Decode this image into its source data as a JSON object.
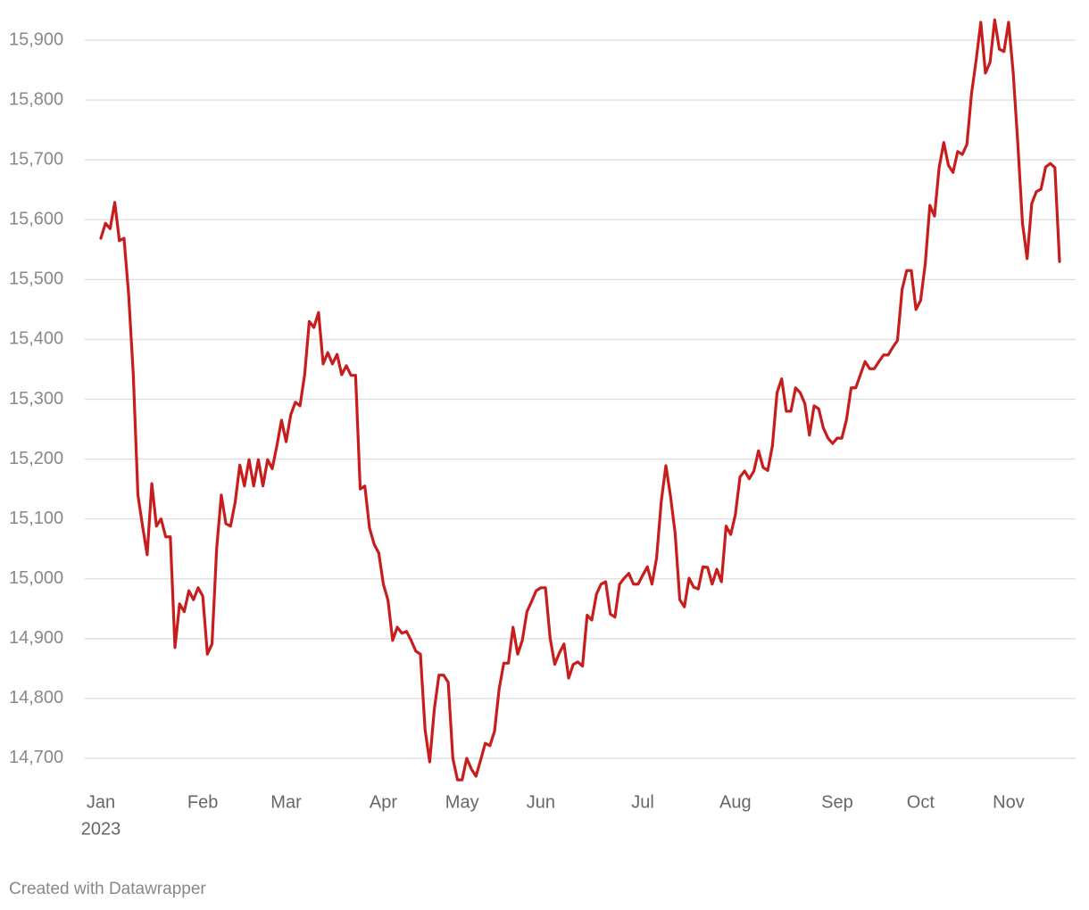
{
  "chart_data": {
    "type": "line",
    "color": "#c71e1d",
    "grid": true,
    "year_label": "2023",
    "footer": "Created with Datawrapper",
    "categories": [
      "Jan",
      null,
      null,
      null,
      null,
      null,
      null,
      null,
      null,
      null,
      null,
      null,
      null,
      null,
      null,
      null,
      null,
      null,
      null,
      null,
      null,
      null,
      "Feb",
      null,
      null,
      null,
      null,
      null,
      null,
      null,
      null,
      null,
      null,
      null,
      null,
      null,
      null,
      null,
      null,
      null,
      "Mar",
      null,
      null,
      null,
      null,
      null,
      null,
      null,
      null,
      null,
      null,
      null,
      null,
      null,
      null,
      null,
      null,
      null,
      null,
      null,
      null,
      "Apr",
      null,
      null,
      null,
      null,
      null,
      null,
      null,
      null,
      null,
      null,
      null,
      null,
      null,
      null,
      null,
      null,
      "May",
      null,
      null,
      null,
      null,
      null,
      null,
      null,
      null,
      null,
      null,
      null,
      null,
      null,
      null,
      null,
      null,
      "Jun",
      null,
      null,
      null,
      null,
      null,
      null,
      null,
      null,
      null,
      null,
      null,
      null,
      null,
      null,
      null,
      null,
      null,
      null,
      null,
      null,
      null,
      "Jul",
      null,
      null,
      null,
      null,
      null,
      null,
      null,
      null,
      null,
      null,
      null,
      null,
      null,
      null,
      null,
      null,
      null,
      null,
      null,
      "Aug",
      null,
      null,
      null,
      null,
      null,
      null,
      null,
      null,
      null,
      null,
      null,
      null,
      null,
      null,
      null,
      null,
      null,
      null,
      null,
      null,
      null,
      "Sep",
      null,
      null,
      null,
      null,
      null,
      null,
      null,
      null,
      null,
      null,
      null,
      null,
      null,
      null,
      null,
      null,
      null,
      "Oct",
      null,
      null,
      null,
      null,
      null,
      null,
      null,
      null,
      null,
      null,
      null,
      null,
      null,
      null,
      null,
      null,
      null,
      null,
      "Nov",
      null,
      null,
      null,
      null,
      null,
      null,
      null,
      null,
      null,
      null,
      null
    ],
    "values": [
      15569,
      15594,
      15585,
      15629,
      15565,
      15569,
      15475,
      15341,
      15140,
      15088,
      15040,
      15159,
      15088,
      15100,
      15070,
      15070,
      14885,
      14958,
      14945,
      14980,
      14965,
      14985,
      14971,
      14874,
      14891,
      15050,
      15140,
      15092,
      15088,
      15128,
      15190,
      15155,
      15199,
      15155,
      15199,
      15155,
      15199,
      15184,
      15222,
      15265,
      15229,
      15274,
      15295,
      15289,
      15341,
      15430,
      15420,
      15445,
      15359,
      15378,
      15359,
      15375,
      15341,
      15356,
      15340,
      15340,
      15150,
      15155,
      15085,
      15058,
      15043,
      14991,
      14964,
      14897,
      14919,
      14909,
      14912,
      14897,
      14879,
      14874,
      14748,
      14694,
      14782,
      14839,
      14839,
      14827,
      14700,
      14664,
      14664,
      14700,
      14682,
      14670,
      14697,
      14725,
      14721,
      14745,
      14816,
      14859,
      14859,
      14919,
      14874,
      14897,
      14945,
      14962,
      14980,
      14985,
      14985,
      14901,
      14857,
      14876,
      14891,
      14834,
      14857,
      14861,
      14854,
      14939,
      14931,
      14974,
      14991,
      14995,
      14941,
      14936,
      14991,
      15001,
      15009,
      14991,
      14991,
      15006,
      15020,
      14991,
      15035,
      15129,
      15189,
      15138,
      15076,
      14965,
      14953,
      15001,
      14986,
      14983,
      15020,
      15019,
      14991,
      15016,
      14995,
      15088,
      15074,
      15107,
      15170,
      15180,
      15167,
      15180,
      15214,
      15186,
      15181,
      15222,
      15311,
      15334,
      15280,
      15280,
      15319,
      15311,
      15293,
      15240,
      15289,
      15284,
      15252,
      15235,
      15226,
      15235,
      15235,
      15266,
      15319,
      15319,
      15341,
      15363,
      15351,
      15351,
      15363,
      15374,
      15374,
      15387,
      15398,
      15483,
      15515,
      15515,
      15450,
      15465,
      15526,
      15624,
      15606,
      15687,
      15729,
      15691,
      15679,
      15714,
      15709,
      15726,
      15811,
      15867,
      15930,
      15845,
      15863,
      15934,
      15885,
      15881,
      15930,
      15845,
      15726,
      15594,
      15535,
      15627,
      15647,
      15651,
      15688,
      15694,
      15687,
      15530
    ],
    "ylim": [
      14650,
      15950
    ],
    "yticks": [
      {
        "value": 14700,
        "label": "14,700"
      },
      {
        "value": 14800,
        "label": "14,800"
      },
      {
        "value": 14900,
        "label": "14,900"
      },
      {
        "value": 15000,
        "label": "15,000"
      },
      {
        "value": 15100,
        "label": "15,100"
      },
      {
        "value": 15200,
        "label": "15,200"
      },
      {
        "value": 15300,
        "label": "15,300"
      },
      {
        "value": 15400,
        "label": "15,400"
      },
      {
        "value": 15500,
        "label": "15,500"
      },
      {
        "value": 15600,
        "label": "15,600"
      },
      {
        "value": 15700,
        "label": "15,700"
      },
      {
        "value": 15800,
        "label": "15,800"
      },
      {
        "value": 15900,
        "label": "15,900"
      }
    ]
  }
}
